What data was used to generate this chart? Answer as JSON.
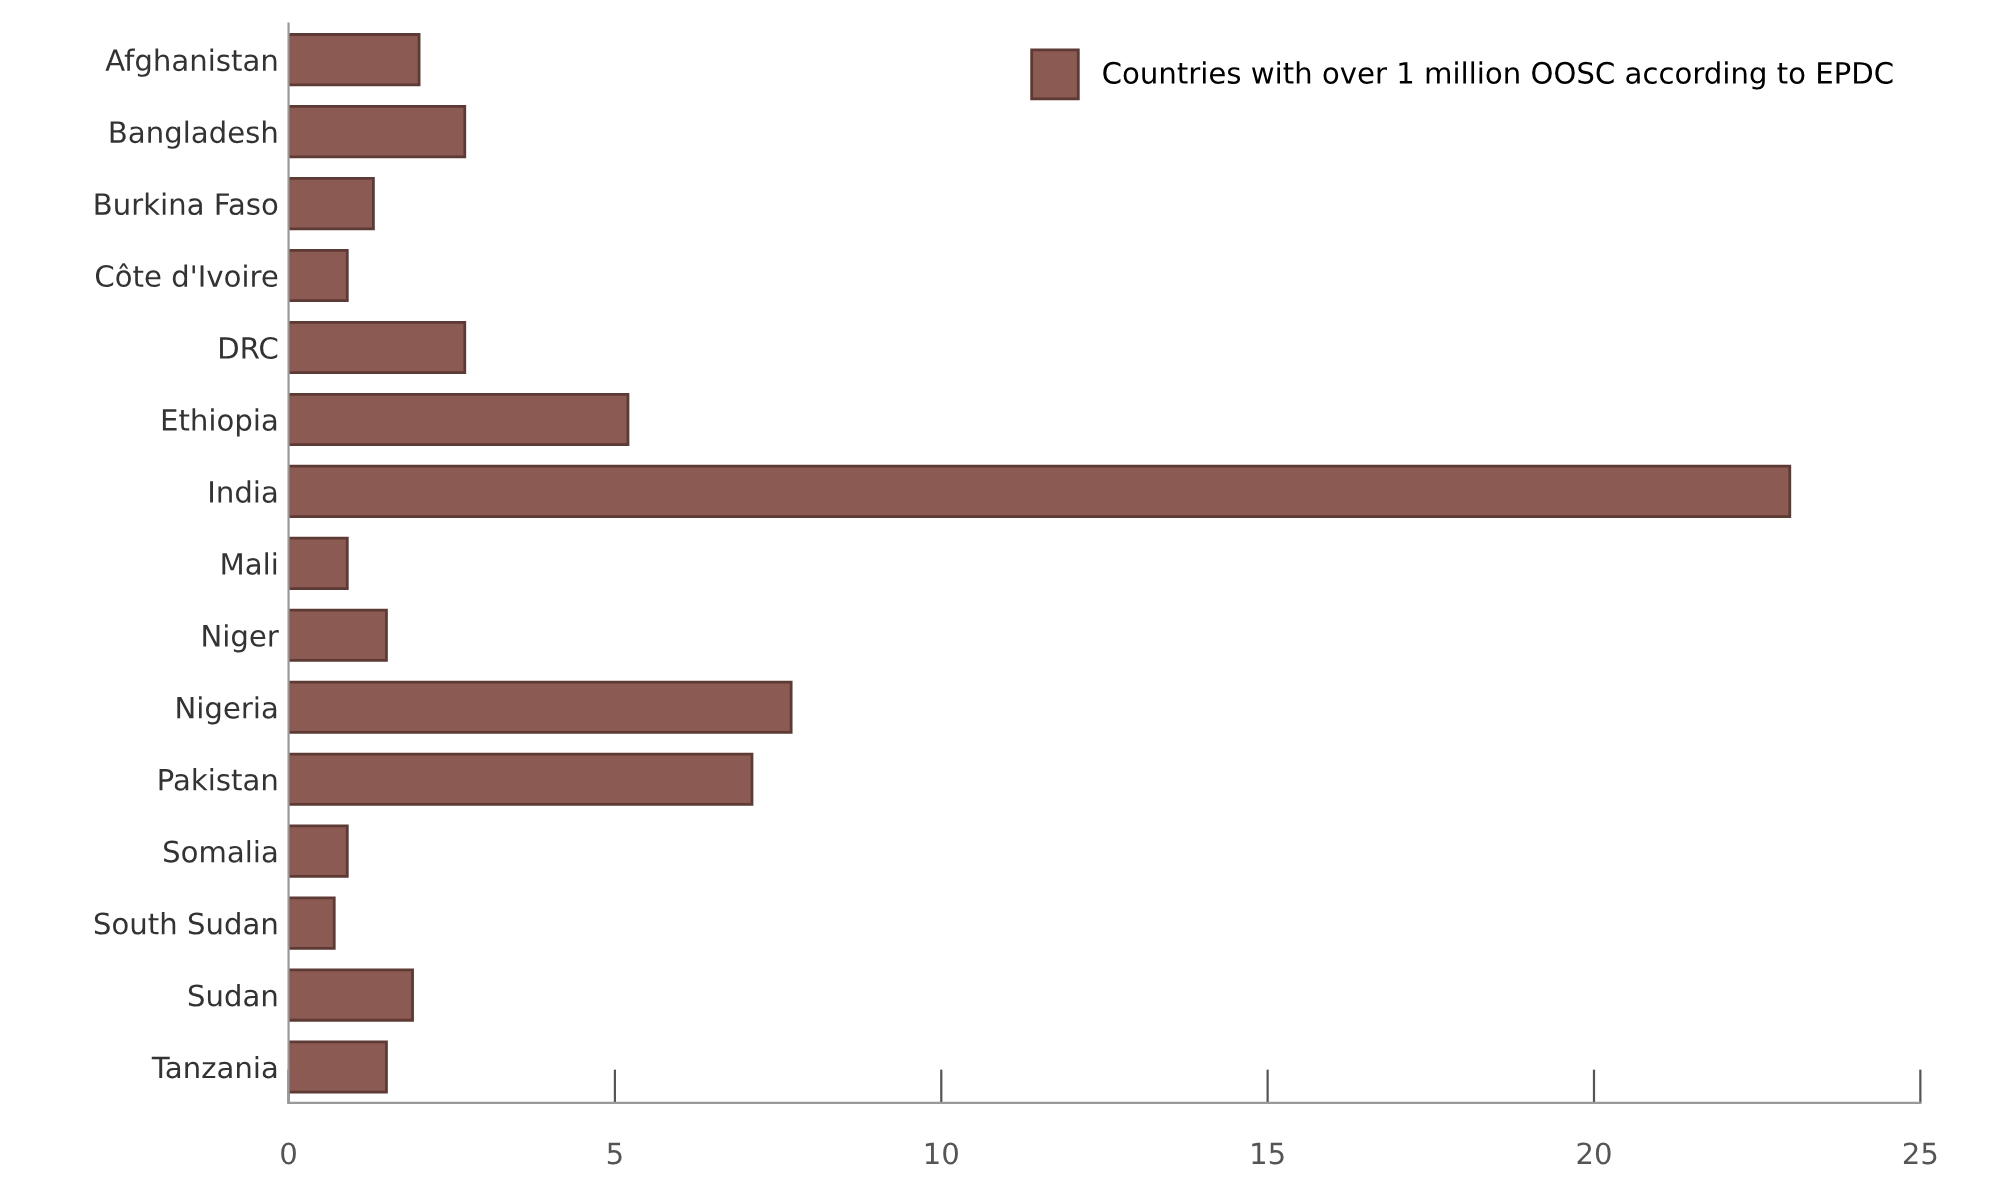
{
  "chart_data": {
    "type": "bar",
    "orientation": "horizontal",
    "categories": [
      "Afghanistan",
      "Bangladesh",
      "Burkina Faso",
      "Côte d'Ivoire",
      "DRC",
      "Ethiopia",
      "India",
      "Mali",
      "Niger",
      "Nigeria",
      "Pakistan",
      "Somalia",
      "South Sudan",
      "Sudan",
      "Tanzania"
    ],
    "series": [
      {
        "name": "Countries with over 1 million OOSC according to EPDC",
        "color": "#8b5a52",
        "values": [
          2.0,
          2.7,
          1.3,
          0.9,
          2.7,
          5.2,
          23.0,
          0.9,
          1.5,
          7.7,
          7.1,
          0.9,
          0.7,
          1.9,
          1.5
        ]
      }
    ],
    "xlim": [
      0,
      25
    ],
    "xticks": [
      0,
      5,
      10,
      15,
      20,
      25
    ],
    "grid": false,
    "legend": "top right"
  }
}
